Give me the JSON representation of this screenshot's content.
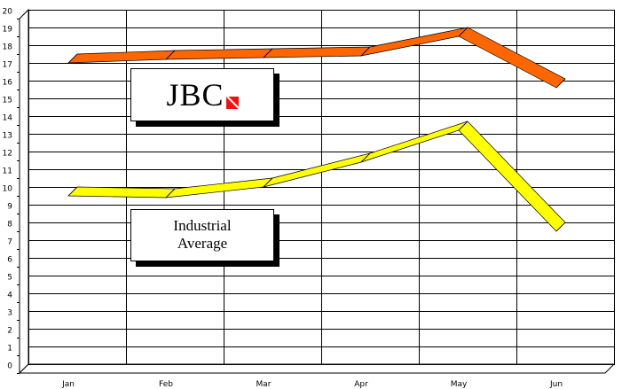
{
  "chart_data": {
    "type": "line",
    "style": "3d-ribbon",
    "categories": [
      "Jan",
      "Feb",
      "Mar",
      "Apr",
      "May",
      "Jun"
    ],
    "ylim": [
      0,
      20
    ],
    "yticks": [
      0,
      1,
      2,
      3,
      4,
      5,
      6,
      7,
      8,
      9,
      10,
      11,
      12,
      13,
      14,
      15,
      16,
      17,
      18,
      19,
      20
    ],
    "grid": true,
    "series": [
      {
        "name": "JBC",
        "color": "#ff6600",
        "values": [
          17.5,
          17.7,
          17.8,
          17.9,
          19.0,
          16.1
        ]
      },
      {
        "name": "Industrial Average",
        "color": "#ffff00",
        "values": [
          10.0,
          9.9,
          10.5,
          11.9,
          13.7,
          8.0
        ]
      }
    ],
    "labels": {
      "jbc": "JBC",
      "industrial_line1": "Industrial",
      "industrial_line2": "Average"
    }
  }
}
